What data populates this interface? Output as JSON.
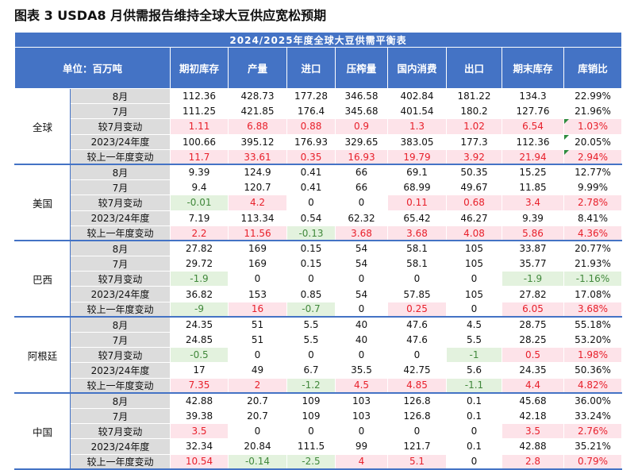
{
  "figure_title": "图表 3 USDA8 月供需报告维持全球大豆供应宽松预期",
  "table_title": "2024/2025年度全球大豆供需平衡表",
  "columns": [
    "单位：百万吨",
    "期初库存",
    "产量",
    "进口",
    "压榨量",
    "国内消费",
    "出口",
    "期末库存",
    "库销比"
  ],
  "groups": [
    {
      "region": "全球",
      "rows": [
        {
          "label": "8月",
          "values": [
            "112.36",
            "428.73",
            "177.28",
            "346.58",
            "402.84",
            "181.22",
            "134.3",
            "22.99%"
          ]
        },
        {
          "label": "7月",
          "values": [
            "111.25",
            "421.85",
            "176.4",
            "345.68",
            "401.54",
            "180.2",
            "127.76",
            "21.96%"
          ]
        },
        {
          "label": "较7月变动",
          "values": [
            "1.11",
            "6.88",
            "0.88",
            "0.9",
            "1.3",
            "1.02",
            "6.54",
            "1.03%"
          ]
        },
        {
          "label": "2023/24年度",
          "values": [
            "100.66",
            "395.12",
            "176.93",
            "329.65",
            "383.05",
            "177.3",
            "112.36",
            "20.05%"
          ]
        },
        {
          "label": "较上一年度变动",
          "values": [
            "11.7",
            "33.61",
            "0.35",
            "16.93",
            "19.79",
            "3.92",
            "21.94",
            "2.94%"
          ]
        }
      ]
    },
    {
      "region": "美国",
      "rows": [
        {
          "label": "8月",
          "values": [
            "9.39",
            "124.9",
            "0.41",
            "66",
            "69.1",
            "50.35",
            "15.25",
            "12.77%"
          ]
        },
        {
          "label": "7月",
          "values": [
            "9.4",
            "120.7",
            "0.41",
            "66",
            "68.99",
            "49.67",
            "11.85",
            "9.99%"
          ]
        },
        {
          "label": "较7月变动",
          "values": [
            "-0.01",
            "4.2",
            "0",
            "0",
            "0.11",
            "0.68",
            "3.4",
            "2.78%"
          ]
        },
        {
          "label": "2023/24年度",
          "values": [
            "7.19",
            "113.34",
            "0.54",
            "62.32",
            "65.42",
            "46.27",
            "9.39",
            "8.41%"
          ]
        },
        {
          "label": "较上一年度变动",
          "values": [
            "2.2",
            "11.56",
            "-0.13",
            "3.68",
            "3.68",
            "4.08",
            "5.86",
            "4.36%"
          ]
        }
      ]
    },
    {
      "region": "巴西",
      "rows": [
        {
          "label": "8月",
          "values": [
            "27.82",
            "169",
            "0.15",
            "54",
            "58.1",
            "105",
            "33.87",
            "20.77%"
          ]
        },
        {
          "label": "7月",
          "values": [
            "29.72",
            "169",
            "0.15",
            "54",
            "58.1",
            "105",
            "35.77",
            "21.93%"
          ]
        },
        {
          "label": "较7月变动",
          "values": [
            "-1.9",
            "0",
            "0",
            "0",
            "0",
            "0",
            "-1.9",
            "-1.16%"
          ]
        },
        {
          "label": "2023/24年度",
          "values": [
            "36.82",
            "153",
            "0.85",
            "54",
            "57.85",
            "105",
            "27.82",
            "17.08%"
          ]
        },
        {
          "label": "较上一年度变动",
          "values": [
            "-9",
            "16",
            "-0.7",
            "0",
            "0.25",
            "0",
            "6.05",
            "3.68%"
          ]
        }
      ]
    },
    {
      "region": "阿根廷",
      "rows": [
        {
          "label": "8月",
          "values": [
            "24.35",
            "51",
            "5.5",
            "40",
            "47.6",
            "4.5",
            "28.75",
            "55.18%"
          ]
        },
        {
          "label": "7月",
          "values": [
            "24.85",
            "51",
            "5.5",
            "40",
            "47.6",
            "5.5",
            "28.25",
            "53.20%"
          ]
        },
        {
          "label": "较7月变动",
          "values": [
            "-0.5",
            "0",
            "0",
            "0",
            "0",
            "-1",
            "0.5",
            "1.98%"
          ]
        },
        {
          "label": "2023/24年度",
          "values": [
            "17",
            "49",
            "6.7",
            "35.5",
            "42.75",
            "5.6",
            "24.35",
            "50.36%"
          ]
        },
        {
          "label": "较上一年度变动",
          "values": [
            "7.35",
            "2",
            "-1.2",
            "4.5",
            "4.85",
            "-1.1",
            "4.4",
            "4.82%"
          ]
        }
      ]
    },
    {
      "region": "中国",
      "rows": [
        {
          "label": "8月",
          "values": [
            "42.88",
            "20.7",
            "109",
            "103",
            "126.8",
            "0.1",
            "45.68",
            "36.00%"
          ]
        },
        {
          "label": "7月",
          "values": [
            "39.38",
            "20.7",
            "109",
            "103",
            "126.8",
            "0.1",
            "42.18",
            "33.24%"
          ]
        },
        {
          "label": "较7月变动",
          "values": [
            "3.5",
            "0",
            "0",
            "0",
            "0",
            "0",
            "3.5",
            "2.76%"
          ]
        },
        {
          "label": "2023/24年度",
          "values": [
            "32.34",
            "20.84",
            "111.5",
            "99",
            "121.7",
            "0.1",
            "42.88",
            "35.21%"
          ]
        },
        {
          "label": "较上一年度变动",
          "values": [
            "10.54",
            "-0.14",
            "-2.5",
            "4",
            "5.1",
            "0",
            "2.8",
            "0.79%"
          ]
        }
      ]
    }
  ],
  "colors": {
    "header_blue": "#4473c5",
    "label_gray": "#dcdcdc",
    "increase_bg": "#fde3e9",
    "increase_text": "#e8202b",
    "decrease_bg": "#e3f2de",
    "decrease_text": "#41883b"
  }
}
